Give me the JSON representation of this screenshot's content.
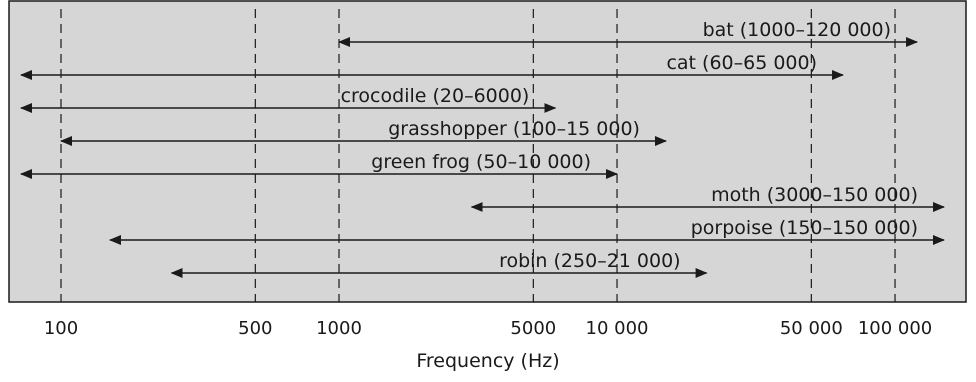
{
  "chart_data": {
    "type": "range",
    "xlabel": "Frequency (Hz)",
    "x_scale": "log",
    "xlim": [
      65,
      180000
    ],
    "grid": "vertical dashed",
    "background_color": "#d6d6d6",
    "ticks": [
      {
        "value": 100,
        "label": "100"
      },
      {
        "value": 500,
        "label": "500"
      },
      {
        "value": 1000,
        "label": "1000"
      },
      {
        "value": 5000,
        "label": "5000"
      },
      {
        "value": 10000,
        "label": "10 000"
      },
      {
        "value": 50000,
        "label": "50 000"
      },
      {
        "value": 100000,
        "label": "100 000"
      }
    ],
    "ranges": [
      {
        "label": "bat (1000–120 000)",
        "low": 1000,
        "high": 120000
      },
      {
        "label": "cat (60–65 000)",
        "low": 60,
        "high": 65000
      },
      {
        "label": "crocodile (20–6000)",
        "low": 20,
        "high": 6000
      },
      {
        "label": "grasshopper (100–15 000)",
        "low": 100,
        "high": 15000
      },
      {
        "label": "green frog (50–10 000)",
        "low": 50,
        "high": 10000
      },
      {
        "label": "moth (3000–150 000)",
        "low": 3000,
        "high": 150000
      },
      {
        "label": "porpoise (150–150 000)",
        "low": 150,
        "high": 150000
      },
      {
        "label": "robin (250–21 000)",
        "low": 250,
        "high": 21000
      }
    ]
  }
}
